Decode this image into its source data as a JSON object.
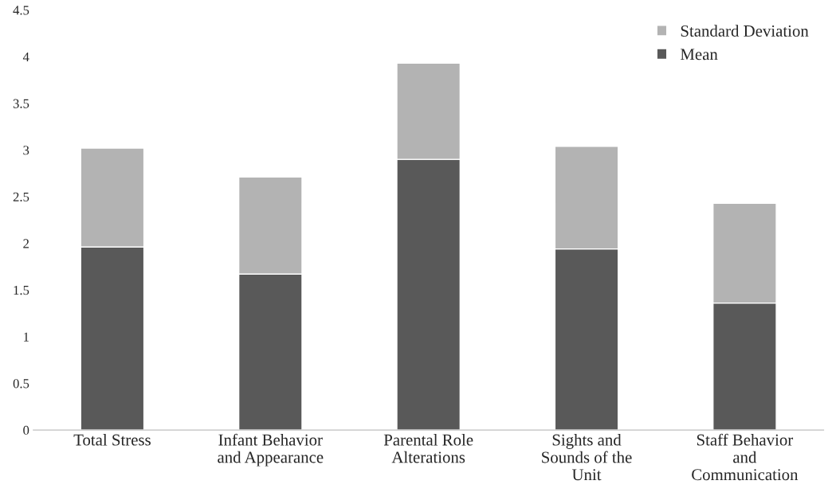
{
  "chart_data": {
    "type": "bar",
    "stacked": true,
    "categories": [
      "Total Stress",
      "Infant Behavior\nand Appearance",
      "Parental Role\nAlterations",
      "Sights and\nSounds of the\nUnit",
      "Staff Behavior\nand\nCommunication"
    ],
    "series": [
      {
        "name": "Mean",
        "color": "#595959",
        "values": [
          1.96,
          1.67,
          2.9,
          1.94,
          1.36
        ]
      },
      {
        "name": "Standard Deviation",
        "color": "#b3b3b3",
        "values": [
          1.06,
          1.04,
          1.03,
          1.1,
          1.07
        ]
      }
    ],
    "ylim": [
      0,
      4.5
    ],
    "yticks": [
      0,
      0.5,
      1,
      1.5,
      2,
      2.5,
      3,
      3.5,
      4,
      4.5
    ],
    "grid": false,
    "legend": "top right"
  }
}
